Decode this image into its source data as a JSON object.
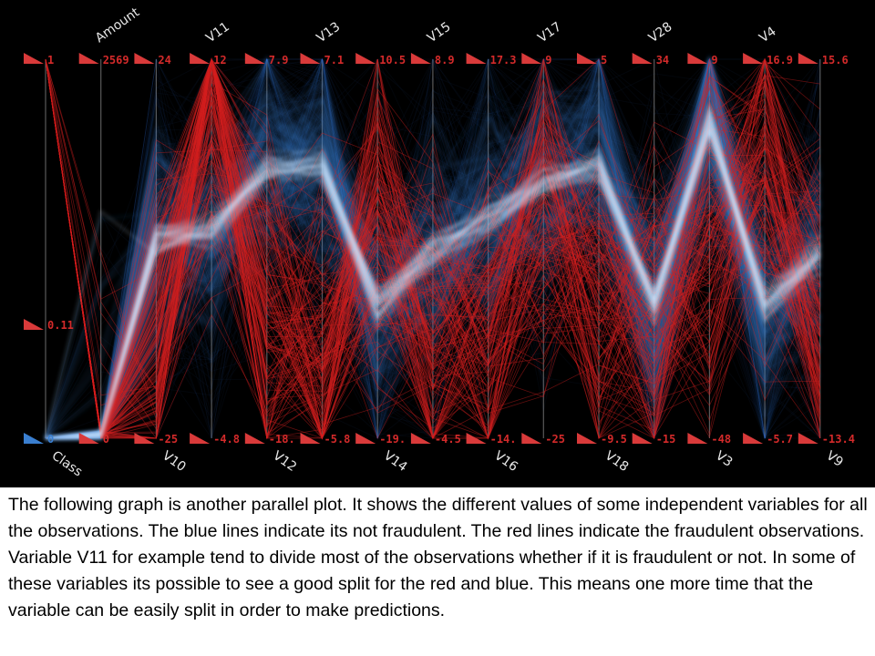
{
  "chart_data": {
    "type": "parallel-coordinates",
    "axes": [
      {
        "name": "Class",
        "name_pos": "bottom",
        "max": "1",
        "mid": "0.11",
        "min": "0"
      },
      {
        "name": "Amount",
        "name_pos": "top",
        "max": "2569",
        "min": "0"
      },
      {
        "name": "V10",
        "name_pos": "bottom",
        "max": "24",
        "min": "-25"
      },
      {
        "name": "V11",
        "name_pos": "top",
        "max": "12",
        "min": "-4.8"
      },
      {
        "name": "V12",
        "name_pos": "bottom",
        "max": "7.9",
        "min": "-18."
      },
      {
        "name": "V13",
        "name_pos": "top",
        "max": "7.1",
        "min": "-5.8"
      },
      {
        "name": "V14",
        "name_pos": "bottom",
        "max": "10.5",
        "min": "-19."
      },
      {
        "name": "V15",
        "name_pos": "top",
        "max": "8.9",
        "min": "-4.5"
      },
      {
        "name": "V16",
        "name_pos": "bottom",
        "max": "17.3",
        "min": "-14."
      },
      {
        "name": "V17",
        "name_pos": "top",
        "max": "9",
        "min": "-25"
      },
      {
        "name": "V18",
        "name_pos": "bottom",
        "max": "5",
        "min": "-9.5"
      },
      {
        "name": "V28",
        "name_pos": "top",
        "max": "34",
        "min": "-15"
      },
      {
        "name": "V3",
        "name_pos": "bottom",
        "max": "9",
        "min": "-48"
      },
      {
        "name": "V4",
        "name_pos": "top",
        "max": "16.9",
        "min": "-5.7"
      },
      {
        "name": "V9",
        "name_pos": "bottom",
        "max": "15.6",
        "min": "-13.4"
      }
    ],
    "series": [
      {
        "class": "not fraudulent",
        "color": "#3a7fd0",
        "typical_profile": [
          0.0,
          0.0,
          0.52,
          0.55,
          0.72,
          0.72,
          0.35,
          0.5,
          0.58,
          0.68,
          0.72,
          0.36,
          0.83,
          0.35,
          0.48
        ]
      },
      {
        "class": "fraudulent",
        "color": "#d42020",
        "typical_profile": [
          1.0,
          0.0,
          0.25,
          0.9,
          0.35,
          0.25,
          0.55,
          0.3,
          0.3,
          0.62,
          0.4,
          0.35,
          0.55,
          0.7,
          0.35
        ]
      }
    ],
    "background": "#000000"
  },
  "caption": "The following graph is another parallel plot. It shows the different values of some independent variables for all the observations. The blue lines indicate its not fraudulent. The red lines indicate the fraudulent observations. Variable V11 for example tend to divide most of the observations whether if it is fraudulent or not. In some of these variables its possible to see a good split for the red and blue. This means one more time that the variable can be easily split in order to make predictions."
}
